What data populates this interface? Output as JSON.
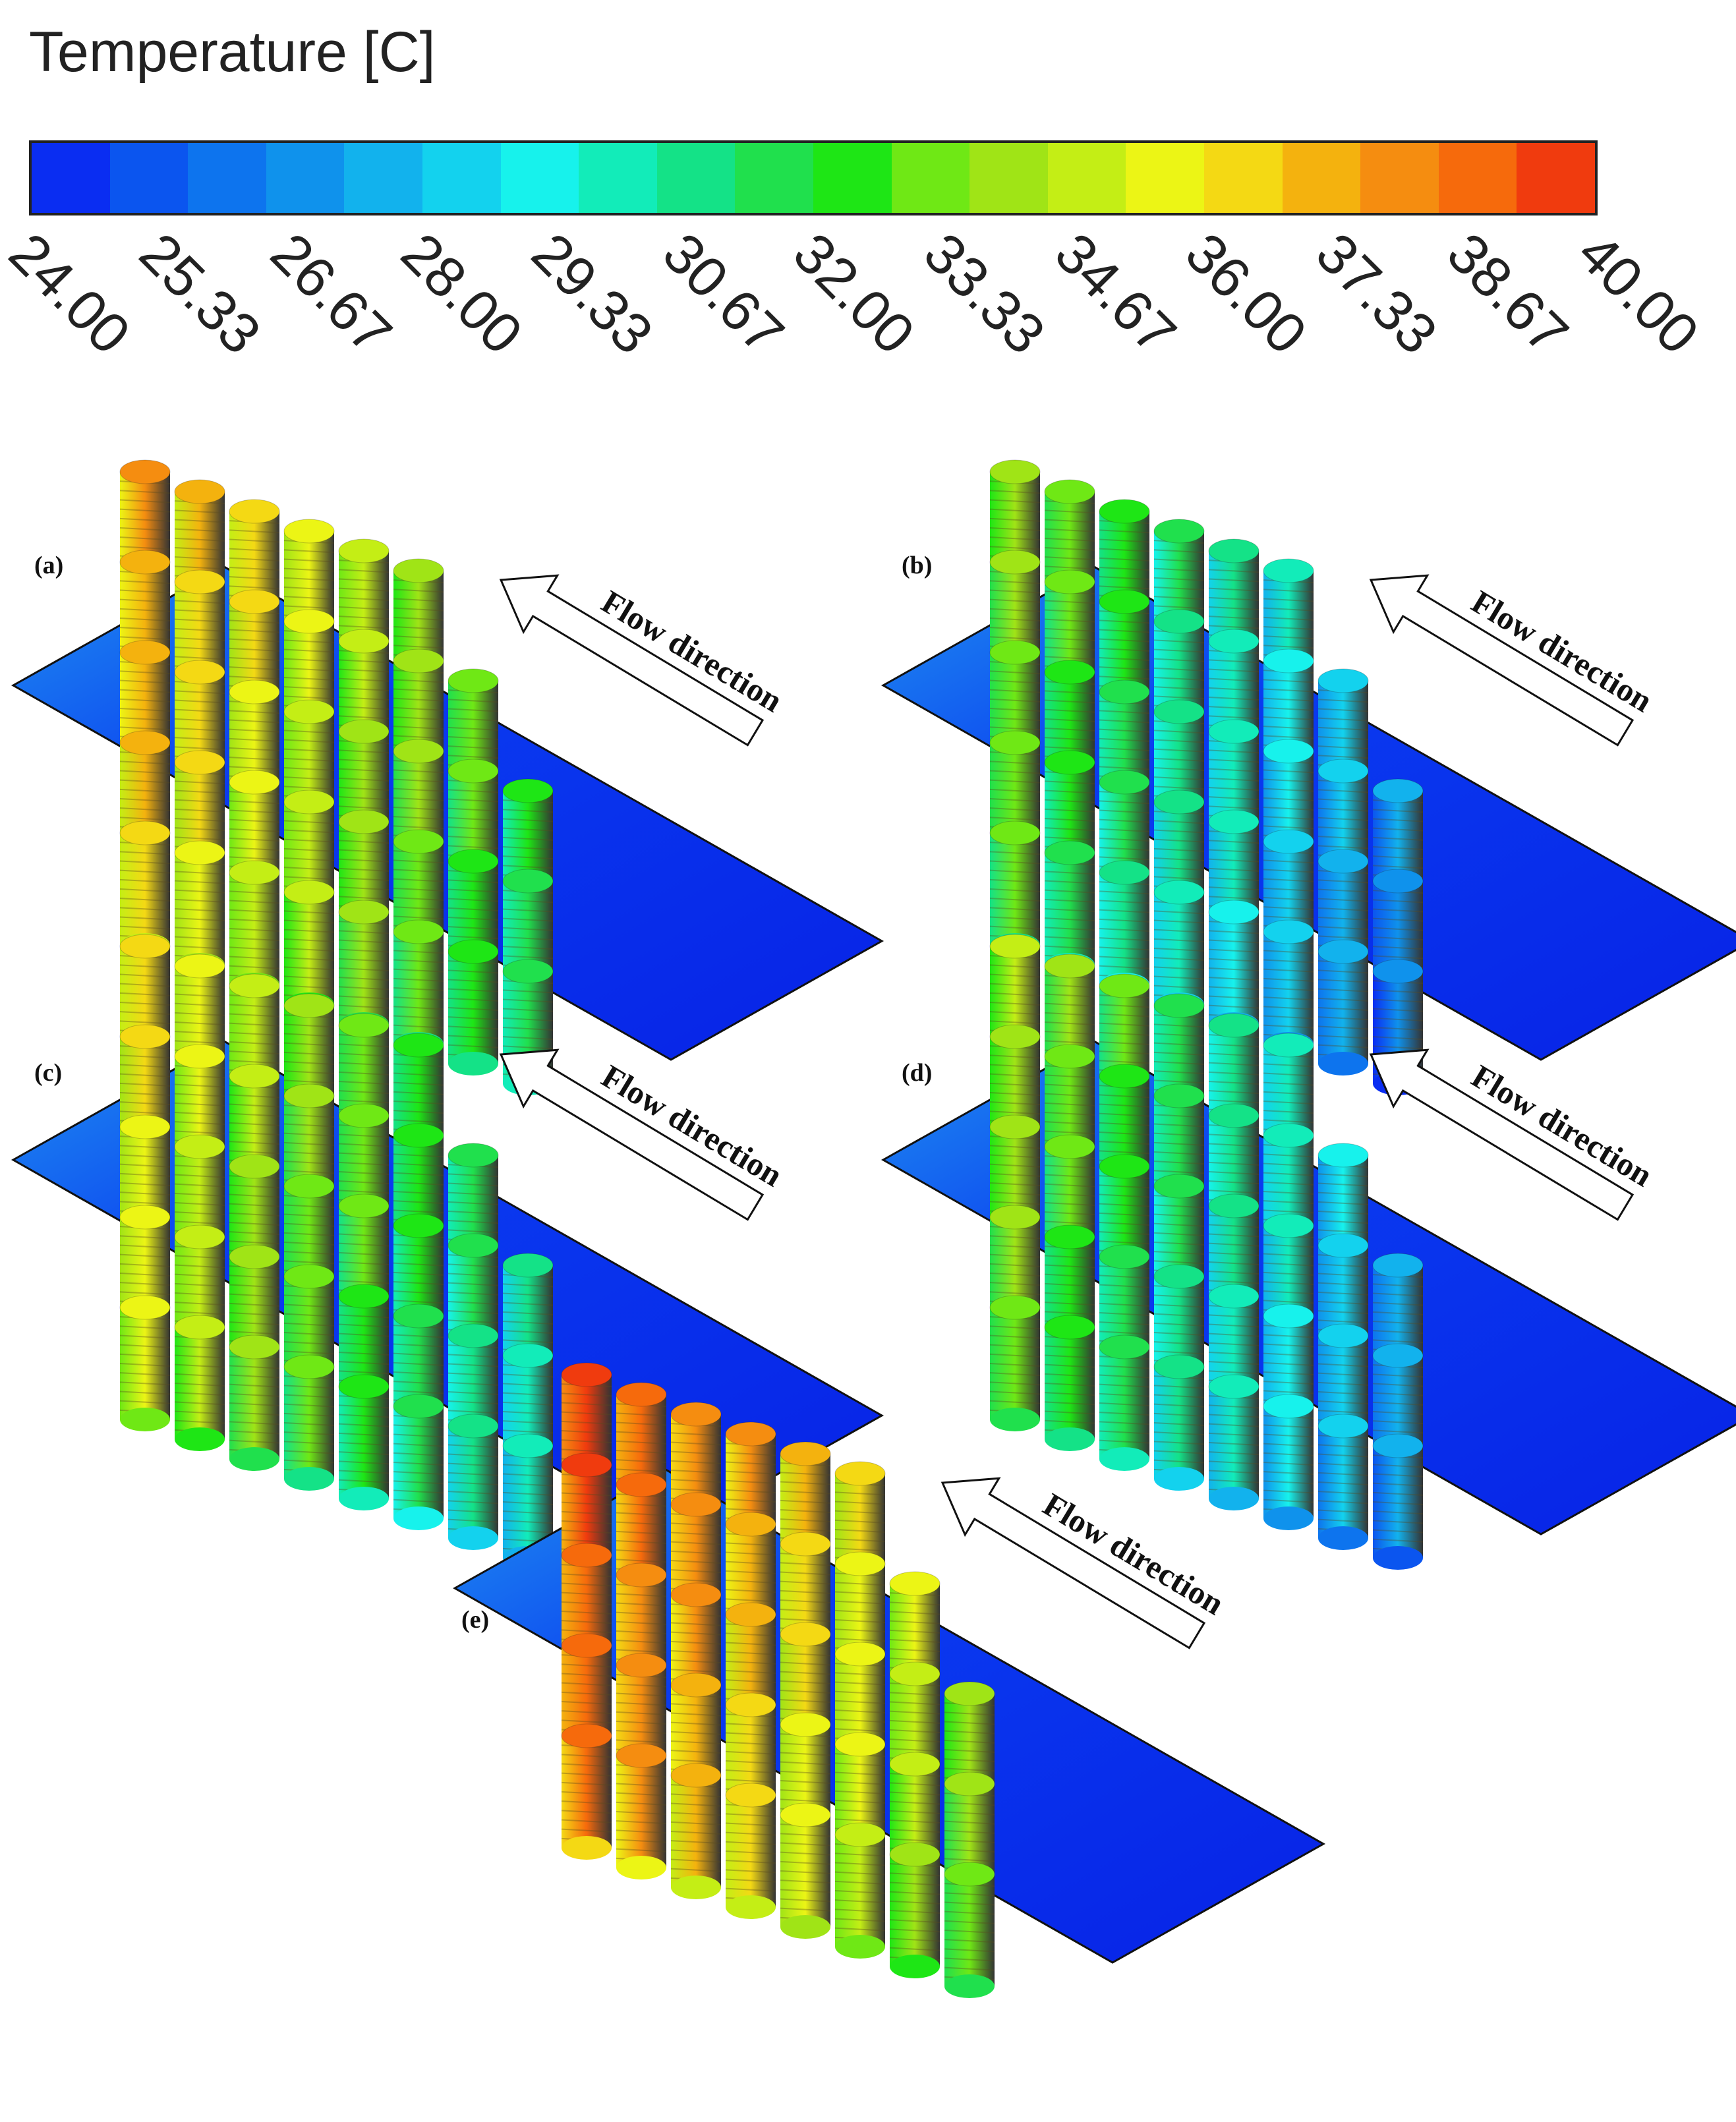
{
  "legend": {
    "title": "Temperature [C]",
    "ticks": [
      "24.00",
      "25.33",
      "26.67",
      "28.00",
      "29.33",
      "30.67",
      "32.00",
      "33.33",
      "34.67",
      "36.00",
      "37.33",
      "38.67",
      "40.00"
    ],
    "min": 24.0,
    "max": 40.0,
    "segment_colors": [
      "#0a2df2",
      "#0b55ef",
      "#0d74ee",
      "#0f92ec",
      "#12b2ed",
      "#13d2ee",
      "#17f2ec",
      "#12ecb9",
      "#14e287",
      "#20e04d",
      "#1ee615",
      "#6fe815",
      "#a0e416",
      "#c4ee15",
      "#ecf515",
      "#f4d914",
      "#f4b20e",
      "#f58d10",
      "#f66a0c",
      "#f03b0e"
    ]
  },
  "panels": [
    {
      "label": "(a)",
      "flow_label": "Flow direction",
      "heat": 0.78,
      "gradient": 0.55
    },
    {
      "label": "(b)",
      "flow_label": "Flow direction",
      "heat": 0.55,
      "gradient": 0.7
    },
    {
      "label": "(c)",
      "flow_label": "Flow direction",
      "heat": 0.7,
      "gradient": 0.6
    },
    {
      "label": "(d)",
      "flow_label": "Flow direction",
      "heat": 0.58,
      "gradient": 0.68
    },
    {
      "label": "(e)",
      "flow_label": "Flow direction",
      "heat": 0.9,
      "gradient": 0.55
    }
  ]
}
